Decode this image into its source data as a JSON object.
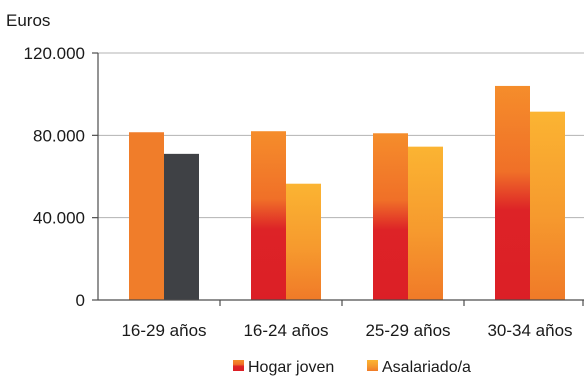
{
  "chart_data": {
    "type": "bar",
    "ylabel": "Euros",
    "ylim": [
      0,
      120000
    ],
    "yticks": [
      0,
      40000,
      80000,
      120000
    ],
    "ytick_labels": [
      "0",
      "40.000",
      "80.000",
      "120.000"
    ],
    "categories": [
      "16-29 años",
      "16-24 años",
      "25-29 años",
      "30-34 años"
    ],
    "series": [
      {
        "name": "Hogar joven",
        "values": [
          81500,
          82000,
          81000,
          104000
        ]
      },
      {
        "name": "Asalariado/a",
        "values": [
          71000,
          56500,
          74500,
          91500
        ]
      }
    ],
    "grid": true,
    "legend": "bottom",
    "colors": {
      "first_group_primary": "#f07d2a",
      "first_group_secondary": "#3f4145",
      "hogar_joven_top": "#f48a2a",
      "hogar_joven_bottom": "#dc1f26",
      "asalariado_top": "#fbb030",
      "asalariado_bottom": "#f07a28",
      "grid": "#b3b3b3",
      "axis": "#4d4d4d"
    }
  }
}
